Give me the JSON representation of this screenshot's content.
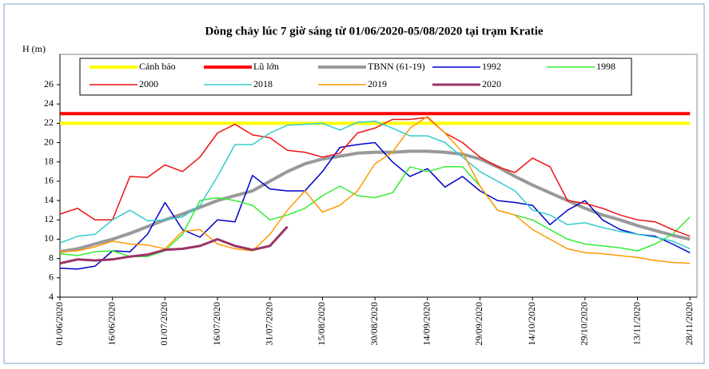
{
  "chart_data": {
    "type": "line",
    "title": "Dòng chảy lúc 7 giờ sáng từ 01/06/2020-05/08/2020 tại trạm Kratie",
    "y_label": "H (m)",
    "x": [
      "01/06/2020",
      "06/06/2020",
      "11/06/2020",
      "16/06/2020",
      "21/06/2020",
      "26/06/2020",
      "01/07/2020",
      "06/07/2020",
      "11/07/2020",
      "16/07/2020",
      "21/07/2020",
      "26/07/2020",
      "31/07/2020",
      "05/08/2020",
      "10/08/2020",
      "15/08/2020",
      "20/08/2020",
      "25/08/2020",
      "30/08/2020",
      "04/09/2020",
      "09/09/2020",
      "14/09/2020",
      "19/09/2020",
      "24/09/2020",
      "29/09/2020",
      "04/10/2020",
      "09/10/2020",
      "14/10/2020",
      "19/10/2020",
      "24/10/2020",
      "29/10/2020",
      "03/11/2020",
      "08/11/2020",
      "13/11/2020",
      "18/11/2020",
      "23/11/2020",
      "28/11/2020"
    ],
    "xlim": [
      "01/06/2020",
      "30/11/2020"
    ],
    "xticks": [
      "01/06/2020",
      "16/06/2020",
      "01/07/2020",
      "16/07/2020",
      "31/07/2020",
      "15/08/2020",
      "30/08/2020",
      "14/09/2020",
      "29/09/2020",
      "14/10/2020",
      "29/10/2020",
      "13/11/2020",
      "28/11/2020"
    ],
    "ylim": [
      4,
      26
    ],
    "yticks": [
      4,
      6,
      8,
      10,
      12,
      14,
      16,
      18,
      20,
      22,
      24,
      26
    ],
    "grid": false,
    "series": [
      {
        "name": "Cảnh báo",
        "color": "#ffff00",
        "width": 4,
        "values": [
          22,
          22,
          22,
          22,
          22,
          22,
          22,
          22,
          22,
          22,
          22,
          22,
          22,
          22,
          22,
          22,
          22,
          22,
          22,
          22,
          22,
          22,
          22,
          22,
          22,
          22,
          22,
          22,
          22,
          22,
          22,
          22,
          22,
          22,
          22,
          22,
          22
        ]
      },
      {
        "name": "Lũ lớn",
        "color": "#ff0000",
        "width": 4,
        "values": [
          23,
          23,
          23,
          23,
          23,
          23,
          23,
          23,
          23,
          23,
          23,
          23,
          23,
          23,
          23,
          23,
          23,
          23,
          23,
          23,
          23,
          23,
          23,
          23,
          23,
          23,
          23,
          23,
          23,
          23,
          23,
          23,
          23,
          23,
          23,
          23,
          23
        ]
      },
      {
        "name": "TBNN (61-19)",
        "color": "#999999",
        "width": 4,
        "values": [
          8.7,
          9.0,
          9.5,
          10.0,
          10.6,
          11.3,
          12.0,
          12.6,
          13.3,
          14.0,
          14.5,
          15.0,
          16.0,
          17.0,
          17.8,
          18.3,
          18.6,
          18.9,
          19.0,
          19.0,
          19.1,
          19.1,
          19.0,
          18.8,
          18.3,
          17.5,
          16.5,
          15.6,
          14.8,
          14.0,
          13.2,
          12.5,
          12.0,
          11.4,
          10.9,
          10.4,
          10.0
        ]
      },
      {
        "name": "1992",
        "color": "#0000cc",
        "width": 1.5,
        "values": [
          7.0,
          6.9,
          7.2,
          8.8,
          8.7,
          10.5,
          13.8,
          11.0,
          10.2,
          12.0,
          11.8,
          16.6,
          15.2,
          15.0,
          15.0,
          17.0,
          19.5,
          19.8,
          20.0,
          18.0,
          16.5,
          17.3,
          15.4,
          16.5,
          15.0,
          14.0,
          13.8,
          13.5,
          11.5,
          13.0,
          14.0,
          12.0,
          11.0,
          10.5,
          10.3,
          9.5,
          8.6
        ]
      },
      {
        "name": "1998",
        "color": "#33ee33",
        "width": 1.5,
        "values": [
          8.5,
          8.3,
          8.7,
          8.8,
          8.2,
          8.2,
          8.8,
          10.5,
          14.0,
          14.3,
          14.0,
          13.5,
          12.0,
          12.5,
          13.2,
          14.5,
          15.5,
          14.5,
          14.3,
          14.8,
          17.5,
          17.0,
          17.5,
          17.5,
          15.5,
          13.0,
          12.5,
          12.0,
          11.0,
          10.0,
          9.5,
          9.3,
          9.1,
          8.8,
          9.5,
          10.5,
          12.3
        ]
      },
      {
        "name": "2000",
        "color": "#ee1111",
        "width": 1.5,
        "values": [
          12.6,
          13.2,
          12.0,
          12.0,
          16.5,
          16.4,
          17.7,
          17.0,
          18.5,
          21.0,
          21.9,
          20.8,
          20.5,
          19.2,
          19.0,
          18.5,
          18.9,
          21.0,
          21.5,
          22.4,
          22.4,
          22.6,
          21.0,
          20.0,
          18.5,
          17.5,
          16.9,
          18.4,
          17.5,
          14.0,
          13.7,
          13.2,
          12.5,
          12.0,
          11.8,
          11.0,
          10.3
        ]
      },
      {
        "name": "2018",
        "color": "#33cccc",
        "width": 1.5,
        "values": [
          9.6,
          10.3,
          10.5,
          12.0,
          13.0,
          11.9,
          12.0,
          12.3,
          13.5,
          16.5,
          19.8,
          19.8,
          21.0,
          21.8,
          21.9,
          22.0,
          21.3,
          22.1,
          22.2,
          21.5,
          20.7,
          20.7,
          20.0,
          18.5,
          17.0,
          16.0,
          15.0,
          13.0,
          12.5,
          11.5,
          11.7,
          11.2,
          10.8,
          10.5,
          10.2,
          9.8,
          9.0
        ]
      },
      {
        "name": "2019",
        "color": "#ff9900",
        "width": 1.5,
        "values": [
          8.7,
          8.8,
          9.2,
          9.8,
          9.5,
          9.4,
          9.0,
          10.8,
          11.0,
          9.5,
          9.0,
          8.8,
          10.5,
          13.0,
          15.0,
          12.8,
          13.5,
          15.0,
          17.8,
          19.0,
          21.5,
          22.7,
          21.0,
          19.0,
          15.5,
          13.0,
          12.5,
          11.0,
          10.0,
          9.0,
          8.6,
          8.5,
          8.3,
          8.1,
          7.8,
          7.6,
          7.5
        ]
      },
      {
        "name": "2020",
        "color": "#993366",
        "width": 3,
        "values": [
          7.5,
          7.9,
          7.8,
          7.9,
          8.2,
          8.4,
          8.9,
          9.0,
          9.3,
          10.0,
          9.3,
          8.9,
          9.3,
          11.3,
          null,
          null,
          null,
          null,
          null,
          null,
          null,
          null,
          null,
          null,
          null,
          null,
          null,
          null,
          null,
          null,
          null,
          null,
          null,
          null,
          null,
          null,
          null
        ]
      }
    ]
  }
}
